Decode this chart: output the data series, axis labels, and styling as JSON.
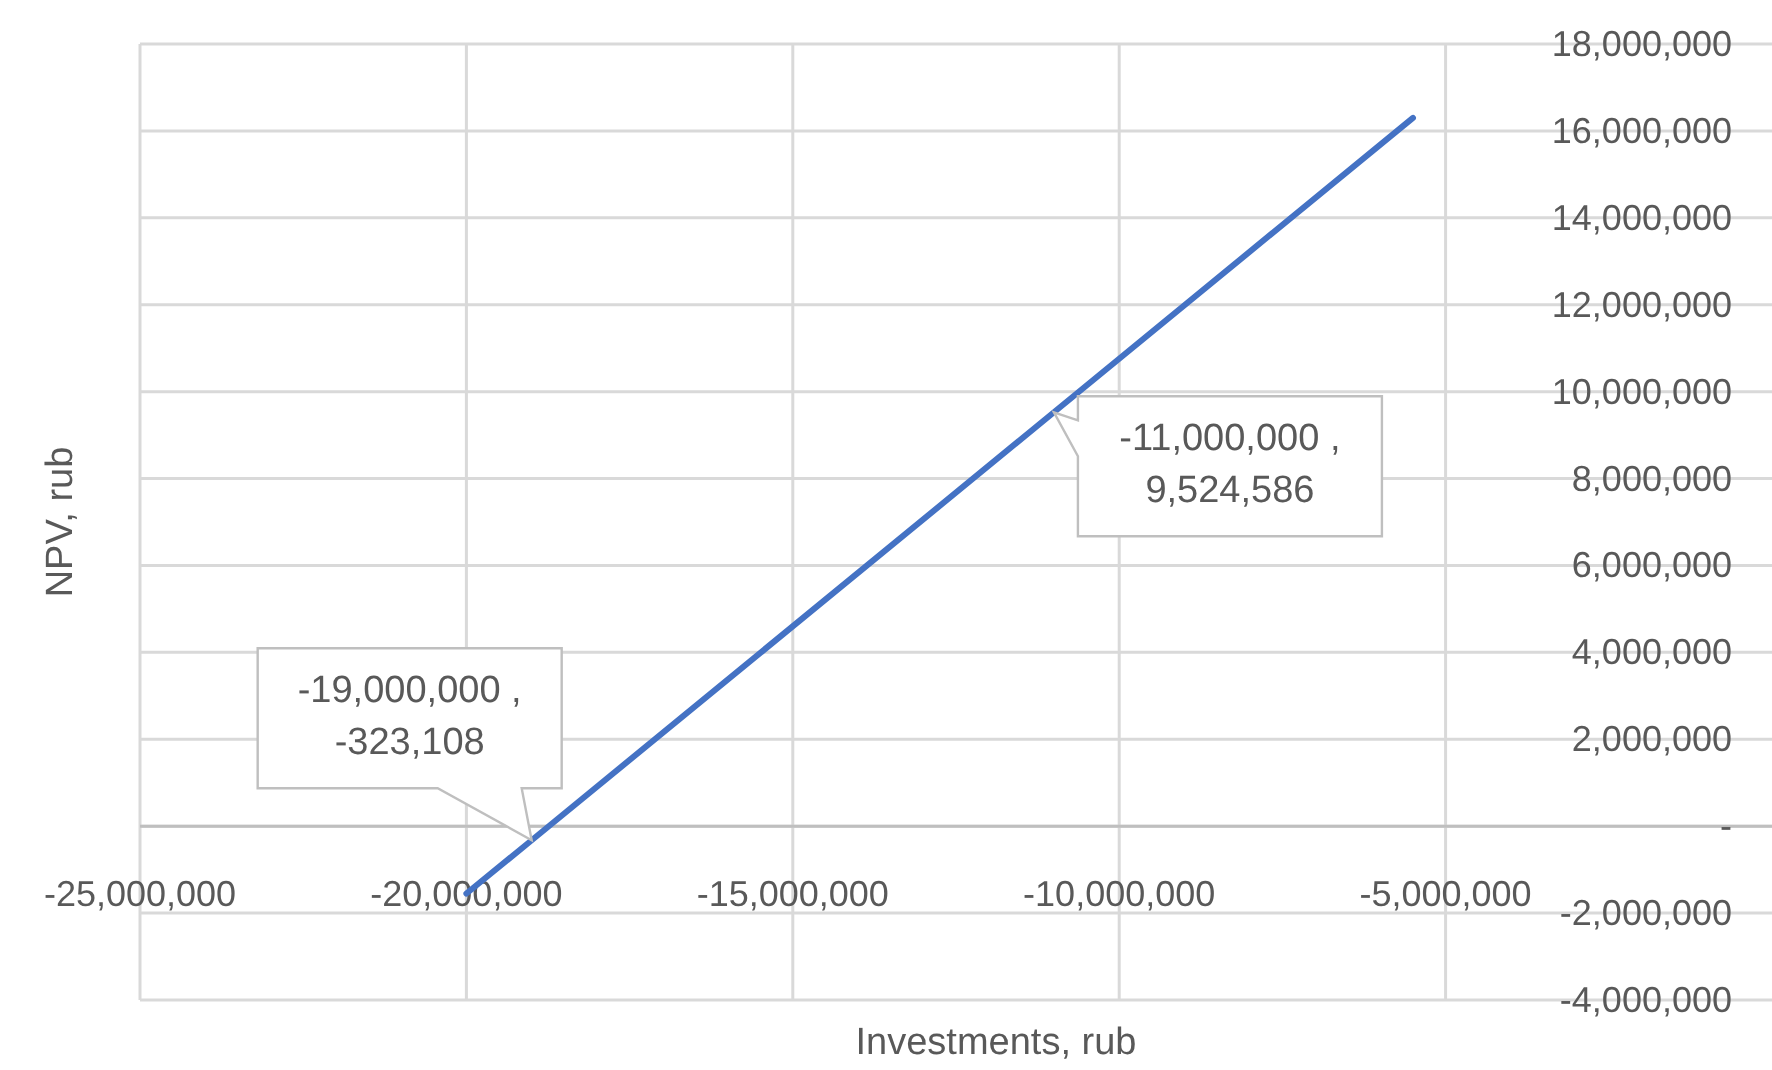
{
  "chart_data": {
    "type": "line",
    "xlabel": "Investments, rub",
    "ylabel": "NPV, rub",
    "x": [
      -20000000,
      -19000000,
      -11000000,
      -5500000
    ],
    "series": [
      {
        "color": "#4472c4",
        "values": [
          -1550000,
          -323108,
          9524586,
          16300000
        ]
      }
    ],
    "xlim": [
      -25000000,
      0
    ],
    "xticks": [
      {
        "value": -25000000,
        "label": "-25,000,000"
      },
      {
        "value": -20000000,
        "label": "-20,000,000"
      },
      {
        "value": -15000000,
        "label": "-15,000,000"
      },
      {
        "value": -10000000,
        "label": "-10,000,000"
      },
      {
        "value": -5000000,
        "label": "-5,000,000"
      }
    ],
    "ylim": [
      -4000000,
      18000000
    ],
    "yticks": [
      {
        "value": -4000000,
        "label": "-4,000,000"
      },
      {
        "value": -2000000,
        "label": "-2,000,000"
      },
      {
        "value": 0,
        "label": "-"
      },
      {
        "value": 2000000,
        "label": "2,000,000"
      },
      {
        "value": 4000000,
        "label": "4,000,000"
      },
      {
        "value": 6000000,
        "label": "6,000,000"
      },
      {
        "value": 8000000,
        "label": "8,000,000"
      },
      {
        "value": 10000000,
        "label": "10,000,000"
      },
      {
        "value": 12000000,
        "label": "12,000,000"
      },
      {
        "value": 14000000,
        "label": "14,000,000"
      },
      {
        "value": 16000000,
        "label": "16,000,000"
      },
      {
        "value": 18000000,
        "label": "18,000,000"
      }
    ],
    "grid": true,
    "marker": "none",
    "line_style": "solid",
    "annotations": [
      {
        "text": "-19,000,000 ,\n-323,108",
        "x": -19000000,
        "y": -323108
      },
      {
        "text": "-11,000,000 ,\n9,524,586",
        "x": -11000000,
        "y": 9524586
      }
    ]
  }
}
